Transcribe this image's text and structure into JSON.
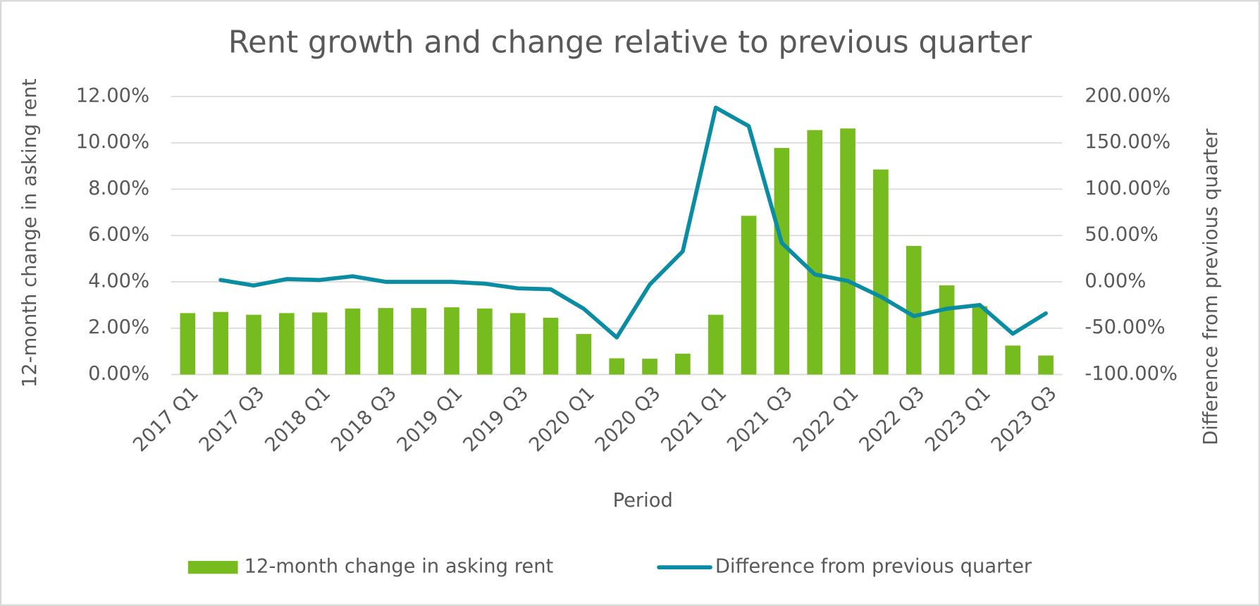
{
  "chart_data": {
    "type": "bar-line",
    "title": "Rent growth and change relative to previous quarter",
    "x_label": "Period",
    "y_label": "12-month change in asking rent",
    "y2_label": "Difference from previous quarter",
    "categories": [
      "2017 Q1",
      null,
      "2017 Q3",
      null,
      "2018 Q1",
      null,
      "2018 Q3",
      null,
      "2019 Q1",
      null,
      "2019 Q3",
      null,
      "2020 Q1",
      null,
      "2020 Q3",
      null,
      "2021 Q1",
      null,
      "2021 Q3",
      null,
      "2022 Q1",
      null,
      "2022 Q3",
      null,
      "2023 Q1",
      null,
      "2023 Q3"
    ],
    "series": [
      {
        "name": "12-month change in asking rent",
        "type": "bar",
        "color": "#77bc1f",
        "values": [
          2.65,
          2.7,
          2.58,
          2.65,
          2.68,
          2.85,
          2.87,
          2.87,
          2.9,
          2.85,
          2.65,
          2.45,
          1.75,
          0.7,
          0.68,
          0.9,
          2.58,
          6.85,
          9.78,
          10.55,
          10.62,
          8.85,
          5.55,
          3.85,
          2.95,
          1.25,
          0.82
        ]
      },
      {
        "name": "Difference from previous quarter",
        "type": "line",
        "axis": "y2",
        "color": "#0a8ca3",
        "values": [
          null,
          2,
          -4,
          3,
          2,
          6,
          0,
          0,
          0,
          -2,
          -7,
          -8,
          -29,
          -60,
          -3,
          33,
          188,
          168,
          42,
          8,
          1,
          -16,
          -37,
          -29,
          -25,
          -56,
          -34
        ]
      }
    ],
    "ylim": [
      0,
      12
    ],
    "yticks": [
      {
        "value": 0,
        "label": "0.00%"
      },
      {
        "value": 2,
        "label": "2.00%"
      },
      {
        "value": 4,
        "label": "4.00%"
      },
      {
        "value": 6,
        "label": "6.00%"
      },
      {
        "value": 8,
        "label": "8.00%"
      },
      {
        "value": 10,
        "label": "10.00%"
      },
      {
        "value": 12,
        "label": "12.00%"
      }
    ],
    "y2lim": [
      -100,
      200
    ],
    "y2ticks": [
      {
        "value": -100,
        "label": "-100.00%"
      },
      {
        "value": -50,
        "label": "-50.00%"
      },
      {
        "value": 0,
        "label": "0.00%"
      },
      {
        "value": 50,
        "label": "50.00%"
      },
      {
        "value": 100,
        "label": "100.00%"
      },
      {
        "value": 150,
        "label": "150.00%"
      },
      {
        "value": 200,
        "label": "200.00%"
      }
    ],
    "grid": true,
    "legend": "bottom"
  }
}
